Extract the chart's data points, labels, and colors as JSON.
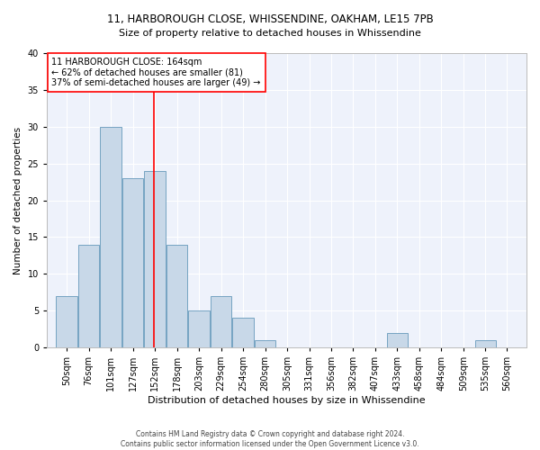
{
  "title1": "11, HARBOROUGH CLOSE, WHISSENDINE, OAKHAM, LE15 7PB",
  "title2": "Size of property relative to detached houses in Whissendine",
  "xlabel": "Distribution of detached houses by size in Whissendine",
  "ylabel": "Number of detached properties",
  "footer1": "Contains HM Land Registry data © Crown copyright and database right 2024.",
  "footer2": "Contains public sector information licensed under the Open Government Licence v3.0.",
  "bin_labels": [
    "50sqm",
    "76sqm",
    "101sqm",
    "127sqm",
    "152sqm",
    "178sqm",
    "203sqm",
    "229sqm",
    "254sqm",
    "280sqm",
    "305sqm",
    "331sqm",
    "356sqm",
    "382sqm",
    "407sqm",
    "433sqm",
    "458sqm",
    "484sqm",
    "509sqm",
    "535sqm",
    "560sqm"
  ],
  "values": [
    7,
    14,
    30,
    23,
    24,
    14,
    5,
    7,
    4,
    1,
    0,
    0,
    0,
    0,
    0,
    2,
    0,
    0,
    0,
    1,
    0
  ],
  "bar_color": "#c8d8e8",
  "bar_edge_color": "#6699bb",
  "red_line_x": 164,
  "annotation_line1": "11 HARBOROUGH CLOSE: 164sqm",
  "annotation_line2": "← 62% of detached houses are smaller (81)",
  "annotation_line3": "37% of semi-detached houses are larger (49) →",
  "annotation_box_color": "white",
  "annotation_box_edge": "red",
  "ylim": [
    0,
    40
  ],
  "yticks": [
    0,
    5,
    10,
    15,
    20,
    25,
    30,
    35,
    40
  ],
  "background_color": "#eef2fb",
  "grid_color": "white",
  "title1_fontsize": 8.5,
  "title2_fontsize": 8.0,
  "xlabel_fontsize": 8.0,
  "ylabel_fontsize": 7.5,
  "tick_fontsize": 7.0,
  "annotation_fontsize": 7.0,
  "footer_fontsize": 5.5
}
